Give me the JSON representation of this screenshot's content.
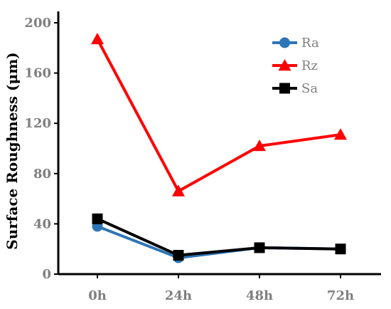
{
  "chart_data": {
    "type": "line",
    "x": [
      "0h",
      "24h",
      "48h",
      "72h"
    ],
    "ylabel": "Surface Roughness (μm)",
    "xlabel": "",
    "ylim": [
      0,
      200
    ],
    "yticks": [
      0,
      40,
      80,
      120,
      160,
      200
    ],
    "grid": false,
    "legend_position": "top-right",
    "series": [
      {
        "name": "Ra",
        "values": [
          38,
          13,
          21,
          20
        ],
        "color": "#2e75b6",
        "marker": "circle"
      },
      {
        "name": "Rz",
        "values": [
          187,
          66,
          102,
          111
        ],
        "color": "#ff0000",
        "marker": "triangle"
      },
      {
        "name": "Sa",
        "values": [
          44,
          15,
          21,
          20
        ],
        "color": "#000000",
        "marker": "square"
      }
    ]
  }
}
